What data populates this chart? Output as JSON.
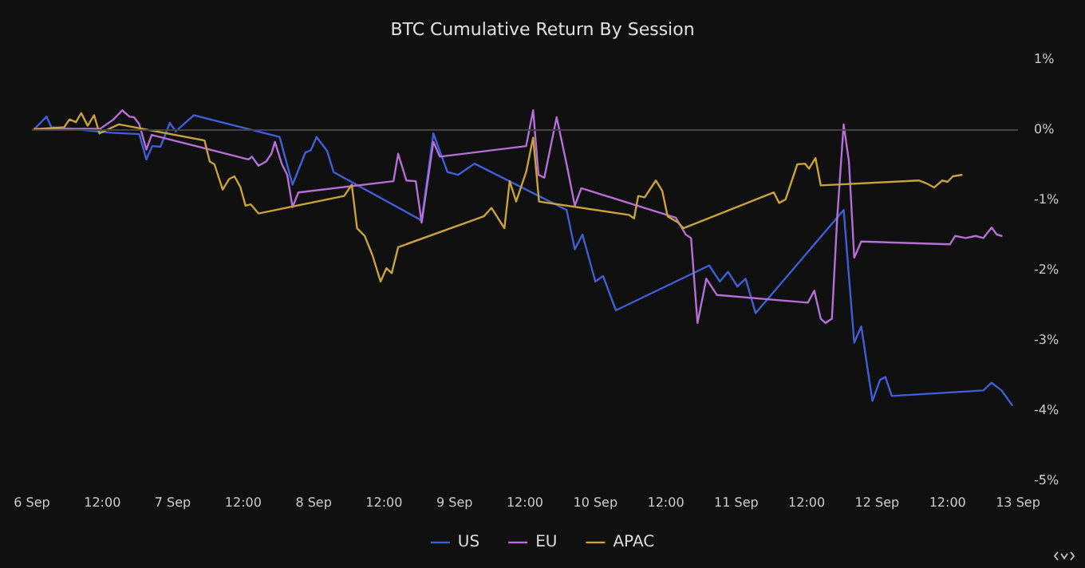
{
  "chart_data": {
    "type": "line",
    "title": "BTC Cumulative Return By Session",
    "xlim": [
      "--09-06",
      "--09-13"
    ],
    "xticks": [
      {
        "value": "--09-06",
        "label": "6 Sep"
      },
      {
        "value": "--09-06T12:00",
        "label": "12:00"
      },
      {
        "value": "--09-07",
        "label": "7 Sep"
      },
      {
        "value": "--09-07T12:00",
        "label": "12:00"
      },
      {
        "value": "--09-08",
        "label": "8 Sep"
      },
      {
        "value": "--09-08T12:00",
        "label": "12:00"
      },
      {
        "value": "--09-09",
        "label": "9 Sep"
      },
      {
        "value": "--09-09T12:00",
        "label": "12:00"
      },
      {
        "value": "--09-10",
        "label": "10 Sep"
      },
      {
        "value": "--09-10T12:00",
        "label": "12:00"
      },
      {
        "value": "--09-11",
        "label": "11 Sep"
      },
      {
        "value": "--09-11T12:00",
        "label": "12:00"
      },
      {
        "value": "--09-12",
        "label": "12 Sep"
      },
      {
        "value": "--09-12T12:00",
        "label": "12:00"
      },
      {
        "value": "--09-13",
        "label": "13 Sep"
      }
    ],
    "ylim": [
      -5,
      1
    ],
    "yticks": [
      {
        "value": -5,
        "label": "-5%"
      },
      {
        "value": -4,
        "label": "-4%"
      },
      {
        "value": -3,
        "label": "-3%"
      },
      {
        "value": -2,
        "label": "-2%"
      },
      {
        "value": -1,
        "label": "-1%"
      },
      {
        "value": 0,
        "label": "0%"
      },
      {
        "value": 1,
        "label": "1%"
      }
    ],
    "grid": false,
    "legend": "bottom",
    "marker": "none",
    "line_style": "solid",
    "ref_lines": [
      {
        "axis": "y",
        "value": 0,
        "color": "#444444"
      }
    ],
    "series": [
      {
        "name": "US",
        "color": "#3f5fd8",
        "x": [
          "--09-06T00:24",
          "--09-06T02:30",
          "--09-06T03:18",
          "--09-06T13:30",
          "--09-06T18:18",
          "--09-06T19:30",
          "--09-06T20:30",
          "--09-06T21:54",
          "--09-06T23:30",
          "--09-07T00:30",
          "--09-07T03:36",
          "--09-07T18:12",
          "--09-07T20:24",
          "--09-07T22:36",
          "--09-07T23:30",
          "--09-08T00:30",
          "--09-08T02:18",
          "--09-08T03:24",
          "--09-08T18:24",
          "--09-08T20:24",
          "--09-08T22:48",
          "--09-09T00:36",
          "--09-09T03:24",
          "--09-09T19:06",
          "--09-09T20:30",
          "--09-09T21:48",
          "--09-10T00:00",
          "--09-10T01:18",
          "--09-10T03:30",
          "--09-10T19:24",
          "--09-10T21:12",
          "--09-10T22:36",
          "--09-11T00:12",
          "--09-11T01:36",
          "--09-11T03:18",
          "--09-11T18:18",
          "--09-11T20:06",
          "--09-11T21:18",
          "--09-11T23:12",
          "--09-12T00:30",
          "--09-12T01:24",
          "--09-12T02:30",
          "--09-12T18:06",
          "--09-12T19:30",
          "--09-12T21:12",
          "--09-12T23:00"
        ],
        "values": [
          0.0,
          0.18,
          0.03,
          -0.05,
          -0.07,
          -0.43,
          -0.24,
          -0.25,
          0.09,
          -0.03,
          0.2,
          -0.11,
          -0.79,
          -0.33,
          -0.3,
          -0.11,
          -0.31,
          -0.61,
          -1.3,
          -0.06,
          -0.61,
          -0.65,
          -0.49,
          -1.15,
          -1.71,
          -1.5,
          -2.17,
          -2.09,
          -2.58,
          -1.94,
          -2.17,
          -2.03,
          -2.24,
          -2.13,
          -2.62,
          -1.15,
          -3.04,
          -2.81,
          -3.87,
          -3.57,
          -3.53,
          -3.8,
          -3.72,
          -3.61,
          -3.72,
          -3.93
        ]
      },
      {
        "name": "EU",
        "color": "#b56fd6",
        "x": [
          "--09-06T00:24",
          "--09-06T11:42",
          "--09-06T13:54",
          "--09-06T15:24",
          "--09-06T16:36",
          "--09-06T17:24",
          "--09-06T18:18",
          "--09-06T19:30",
          "--09-06T20:24",
          "--09-07T12:54",
          "--09-07T13:30",
          "--09-07T14:36",
          "--09-07T15:54",
          "--09-07T16:48",
          "--09-07T17:24",
          "--09-07T18:36",
          "--09-07T19:30",
          "--09-07T20:24",
          "--09-07T21:24",
          "--09-08T13:36",
          "--09-08T14:24",
          "--09-08T15:48",
          "--09-08T17:24",
          "--09-08T18:24",
          "--09-08T20:24",
          "--09-08T21:30",
          "--09-09T12:12",
          "--09-09T13:24",
          "--09-09T14:18",
          "--09-09T15:18",
          "--09-09T17:24",
          "--09-09T19:06",
          "--09-09T20:30",
          "--09-09T21:36",
          "--09-10T13:42",
          "--09-10T15:24",
          "--09-10T16:18",
          "--09-10T17:24",
          "--09-10T18:54",
          "--09-10T20:42",
          "--09-11T12:12",
          "--09-11T13:18",
          "--09-11T14:24",
          "--09-11T15:12",
          "--09-11T16:18",
          "--09-11T17:12",
          "--09-11T18:18",
          "--09-11T19:12",
          "--09-11T20:06",
          "--09-11T21:18",
          "--09-12T12:24",
          "--09-12T13:18",
          "--09-12T15:06",
          "--09-12T16:48",
          "--09-12T18:06",
          "--09-12T19:30",
          "--09-12T20:24",
          "--09-12T21:12"
        ],
        "values": [
          0.0,
          0.01,
          0.14,
          0.27,
          0.18,
          0.17,
          0.07,
          -0.29,
          -0.08,
          -0.43,
          -0.39,
          -0.52,
          -0.46,
          -0.35,
          -0.18,
          -0.5,
          -0.65,
          -1.11,
          -0.9,
          -0.74,
          -0.35,
          -0.73,
          -0.74,
          -1.33,
          -0.18,
          -0.39,
          -0.24,
          0.27,
          -0.65,
          -0.69,
          0.17,
          -0.5,
          -1.09,
          -0.84,
          -1.26,
          -1.5,
          -1.55,
          -2.76,
          -2.13,
          -2.36,
          -2.47,
          -2.3,
          -2.7,
          -2.76,
          -2.7,
          -1.26,
          0.07,
          -0.46,
          -1.83,
          -1.6,
          -1.64,
          -1.52,
          -1.55,
          -1.52,
          -1.55,
          -1.4,
          -1.5,
          -1.52
        ]
      },
      {
        "name": "APAC",
        "color": "#c9a23c",
        "x": [
          "--09-06T00:24",
          "--09-06T05:30",
          "--09-06T06:24",
          "--09-06T07:30",
          "--09-06T08:24",
          "--09-06T09:30",
          "--09-06T10:36",
          "--09-06T11:30",
          "--09-06T14:48",
          "--09-07T05:24",
          "--09-07T06:18",
          "--09-07T07:06",
          "--09-07T08:30",
          "--09-07T09:36",
          "--09-07T10:30",
          "--09-07T11:30",
          "--09-07T12:24",
          "--09-07T13:18",
          "--09-07T14:36",
          "--09-08T05:12",
          "--09-08T06:30",
          "--09-08T07:24",
          "--09-08T08:42",
          "--09-08T10:00",
          "--09-08T11:24",
          "--09-08T12:24",
          "--09-08T13:18",
          "--09-08T14:24",
          "--09-09T05:00",
          "--09-09T06:18",
          "--09-09T08:30",
          "--09-09T09:24",
          "--09-09T10:30",
          "--09-09T12:12",
          "--09-09T13:24",
          "--09-09T14:24",
          "--09-10T05:42",
          "--09-10T06:36",
          "--09-10T07:18",
          "--09-10T08:24",
          "--09-10T10:18",
          "--09-10T11:24",
          "--09-10T12:18",
          "--09-10T14:06",
          "--09-10T15:00",
          "--09-11T06:24",
          "--09-11T07:18",
          "--09-11T08:24",
          "--09-11T10:24",
          "--09-11T11:42",
          "--09-11T12:24",
          "--09-11T13:30",
          "--09-11T14:24",
          "--09-12T07:06",
          "--09-12T08:24",
          "--09-12T09:42",
          "--09-12T11:06",
          "--09-12T12:00",
          "--09-12T12:54",
          "--09-12T14:24"
        ],
        "values": [
          0.0,
          0.03,
          0.14,
          0.1,
          0.23,
          0.05,
          0.2,
          -0.06,
          0.07,
          -0.16,
          -0.46,
          -0.5,
          -0.86,
          -0.71,
          -0.67,
          -0.82,
          -1.09,
          -1.07,
          -1.2,
          -0.95,
          -0.79,
          -1.41,
          -1.52,
          -1.79,
          -2.17,
          -1.98,
          -2.05,
          -1.68,
          -1.24,
          -1.12,
          -1.41,
          -0.74,
          -1.03,
          -0.61,
          -0.12,
          -1.03,
          -1.22,
          -1.27,
          -0.95,
          -0.97,
          -0.73,
          -0.88,
          -1.24,
          -1.33,
          -1.41,
          -0.9,
          -1.05,
          -1.0,
          -0.5,
          -0.49,
          -0.56,
          -0.41,
          -0.8,
          -0.73,
          -0.77,
          -0.83,
          -0.73,
          -0.75,
          -0.67,
          -0.65
        ]
      }
    ]
  }
}
